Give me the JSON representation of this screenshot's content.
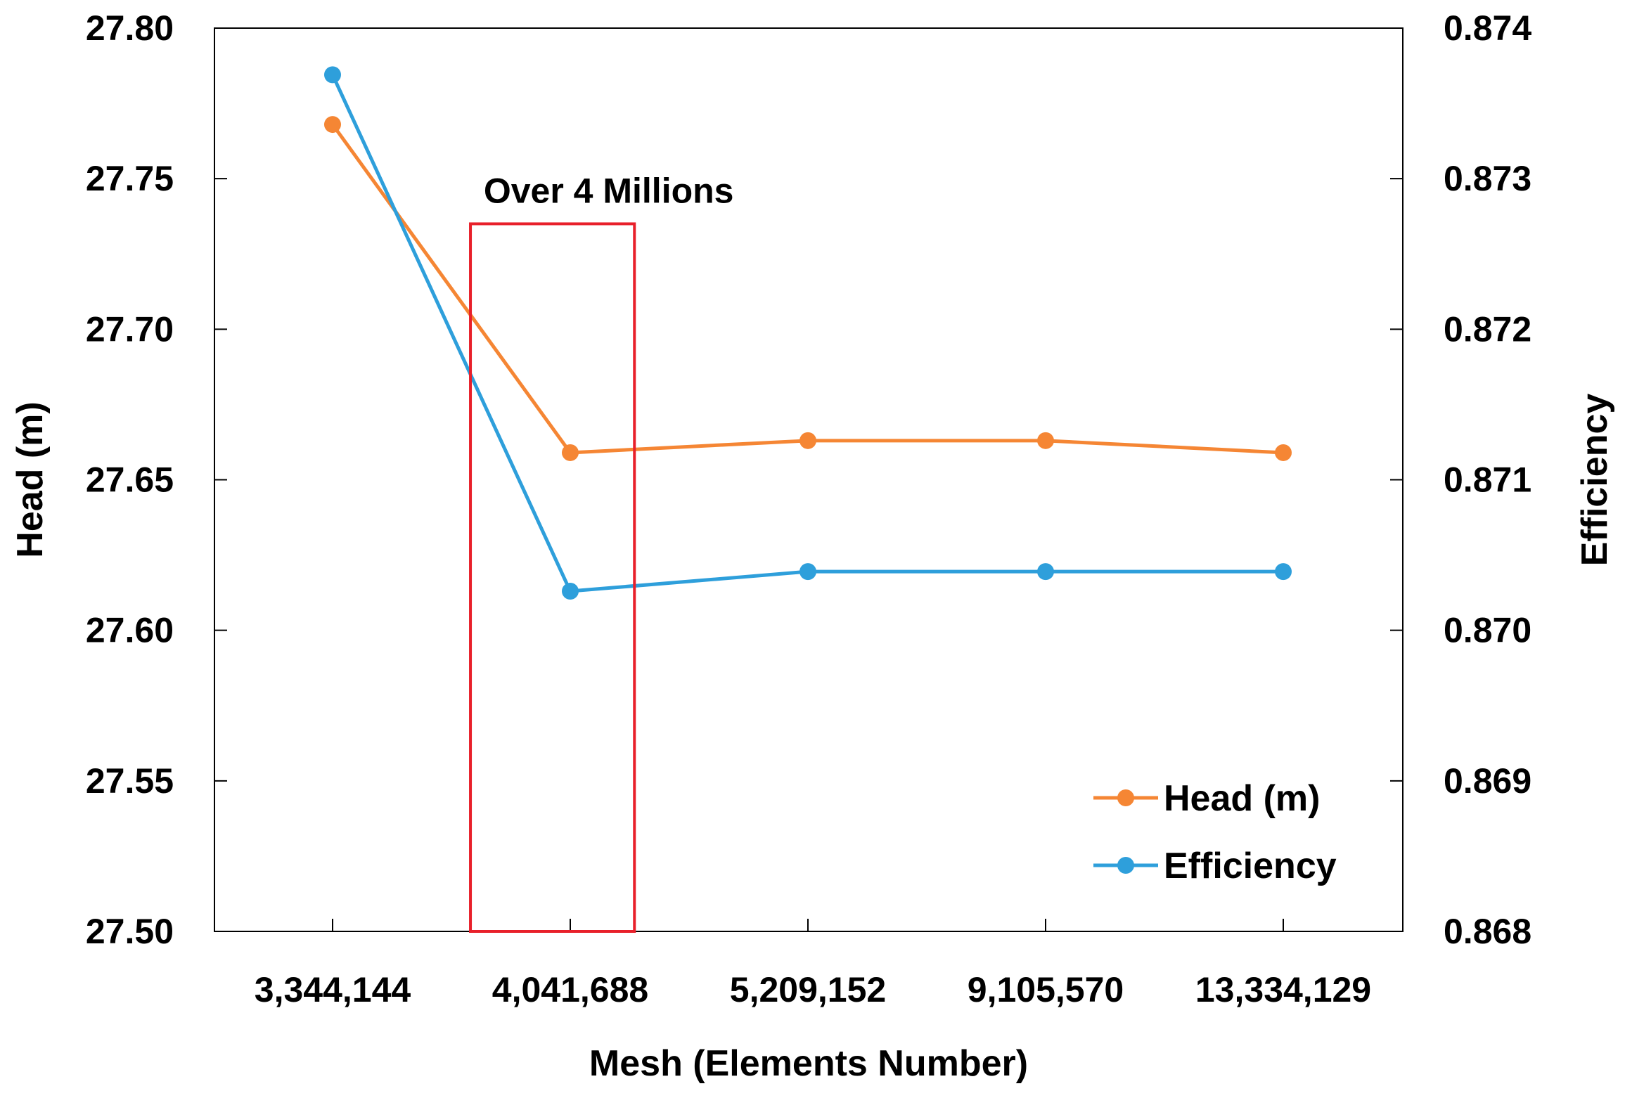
{
  "chart_data": {
    "type": "line",
    "title": "",
    "xlabel": "Mesh (Elements Number)",
    "ylabel": "Head (m)",
    "y2label": "Efficiency",
    "categories": [
      "3,344,144",
      "4,041,688",
      "5,209,152",
      "9,105,570",
      "13,334,129"
    ],
    "ylim": [
      27.5,
      27.8
    ],
    "y2lim": [
      0.868,
      0.874
    ],
    "yticks": [
      "27.50",
      "27.55",
      "27.60",
      "27.65",
      "27.70",
      "27.75",
      "27.80"
    ],
    "y2ticks": [
      "0.868",
      "0.869",
      "0.870",
      "0.871",
      "0.872",
      "0.873",
      "0.874"
    ],
    "grid": false,
    "legend_position": "bottom-right",
    "series": [
      {
        "name": "Head (m)",
        "axis": "left",
        "color": "#F58634",
        "values": [
          27.768,
          27.659,
          27.663,
          27.663,
          27.659
        ]
      },
      {
        "name": "Efficiency",
        "axis": "right",
        "color": "#2E9FDB",
        "values": [
          0.87369,
          0.87026,
          0.87039,
          0.87039,
          0.87039
        ]
      }
    ],
    "annotation": {
      "text": "Over 4 Millions",
      "color": "#E8202A",
      "x_range": [
        "3,344,144",
        "4,041,688"
      ],
      "x_start_fraction": 0.58,
      "x_end_fraction": 0.27,
      "y_range": [
        27.5,
        27.735
      ]
    }
  }
}
